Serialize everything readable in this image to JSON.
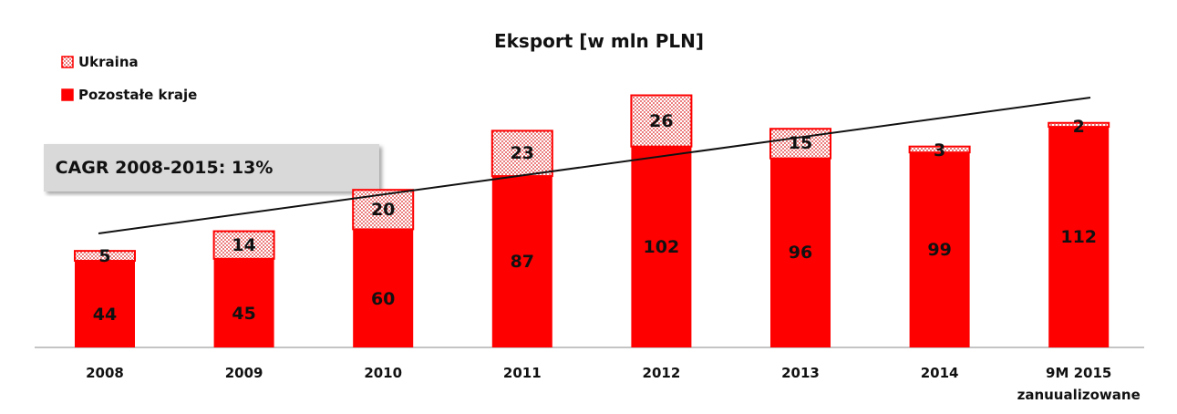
{
  "chart_data": {
    "type": "stacked_bar",
    "title": "Eksport [w mln PLN]",
    "categories": [
      "2008",
      "2009",
      "2010",
      "2011",
      "2012",
      "2013",
      "2014",
      "9M 2015\nzanuualizowane"
    ],
    "series": [
      {
        "name": "Pozostałe kraje",
        "color": "#ff0000",
        "values": [
          44,
          45,
          60,
          87,
          102,
          96,
          99,
          112
        ]
      },
      {
        "name": "Ukraina",
        "color": "#ff0000",
        "values": [
          5,
          14,
          20,
          23,
          26,
          15,
          3,
          2
        ]
      }
    ],
    "annotation": "CAGR 2008-2015: 13%"
  }
}
